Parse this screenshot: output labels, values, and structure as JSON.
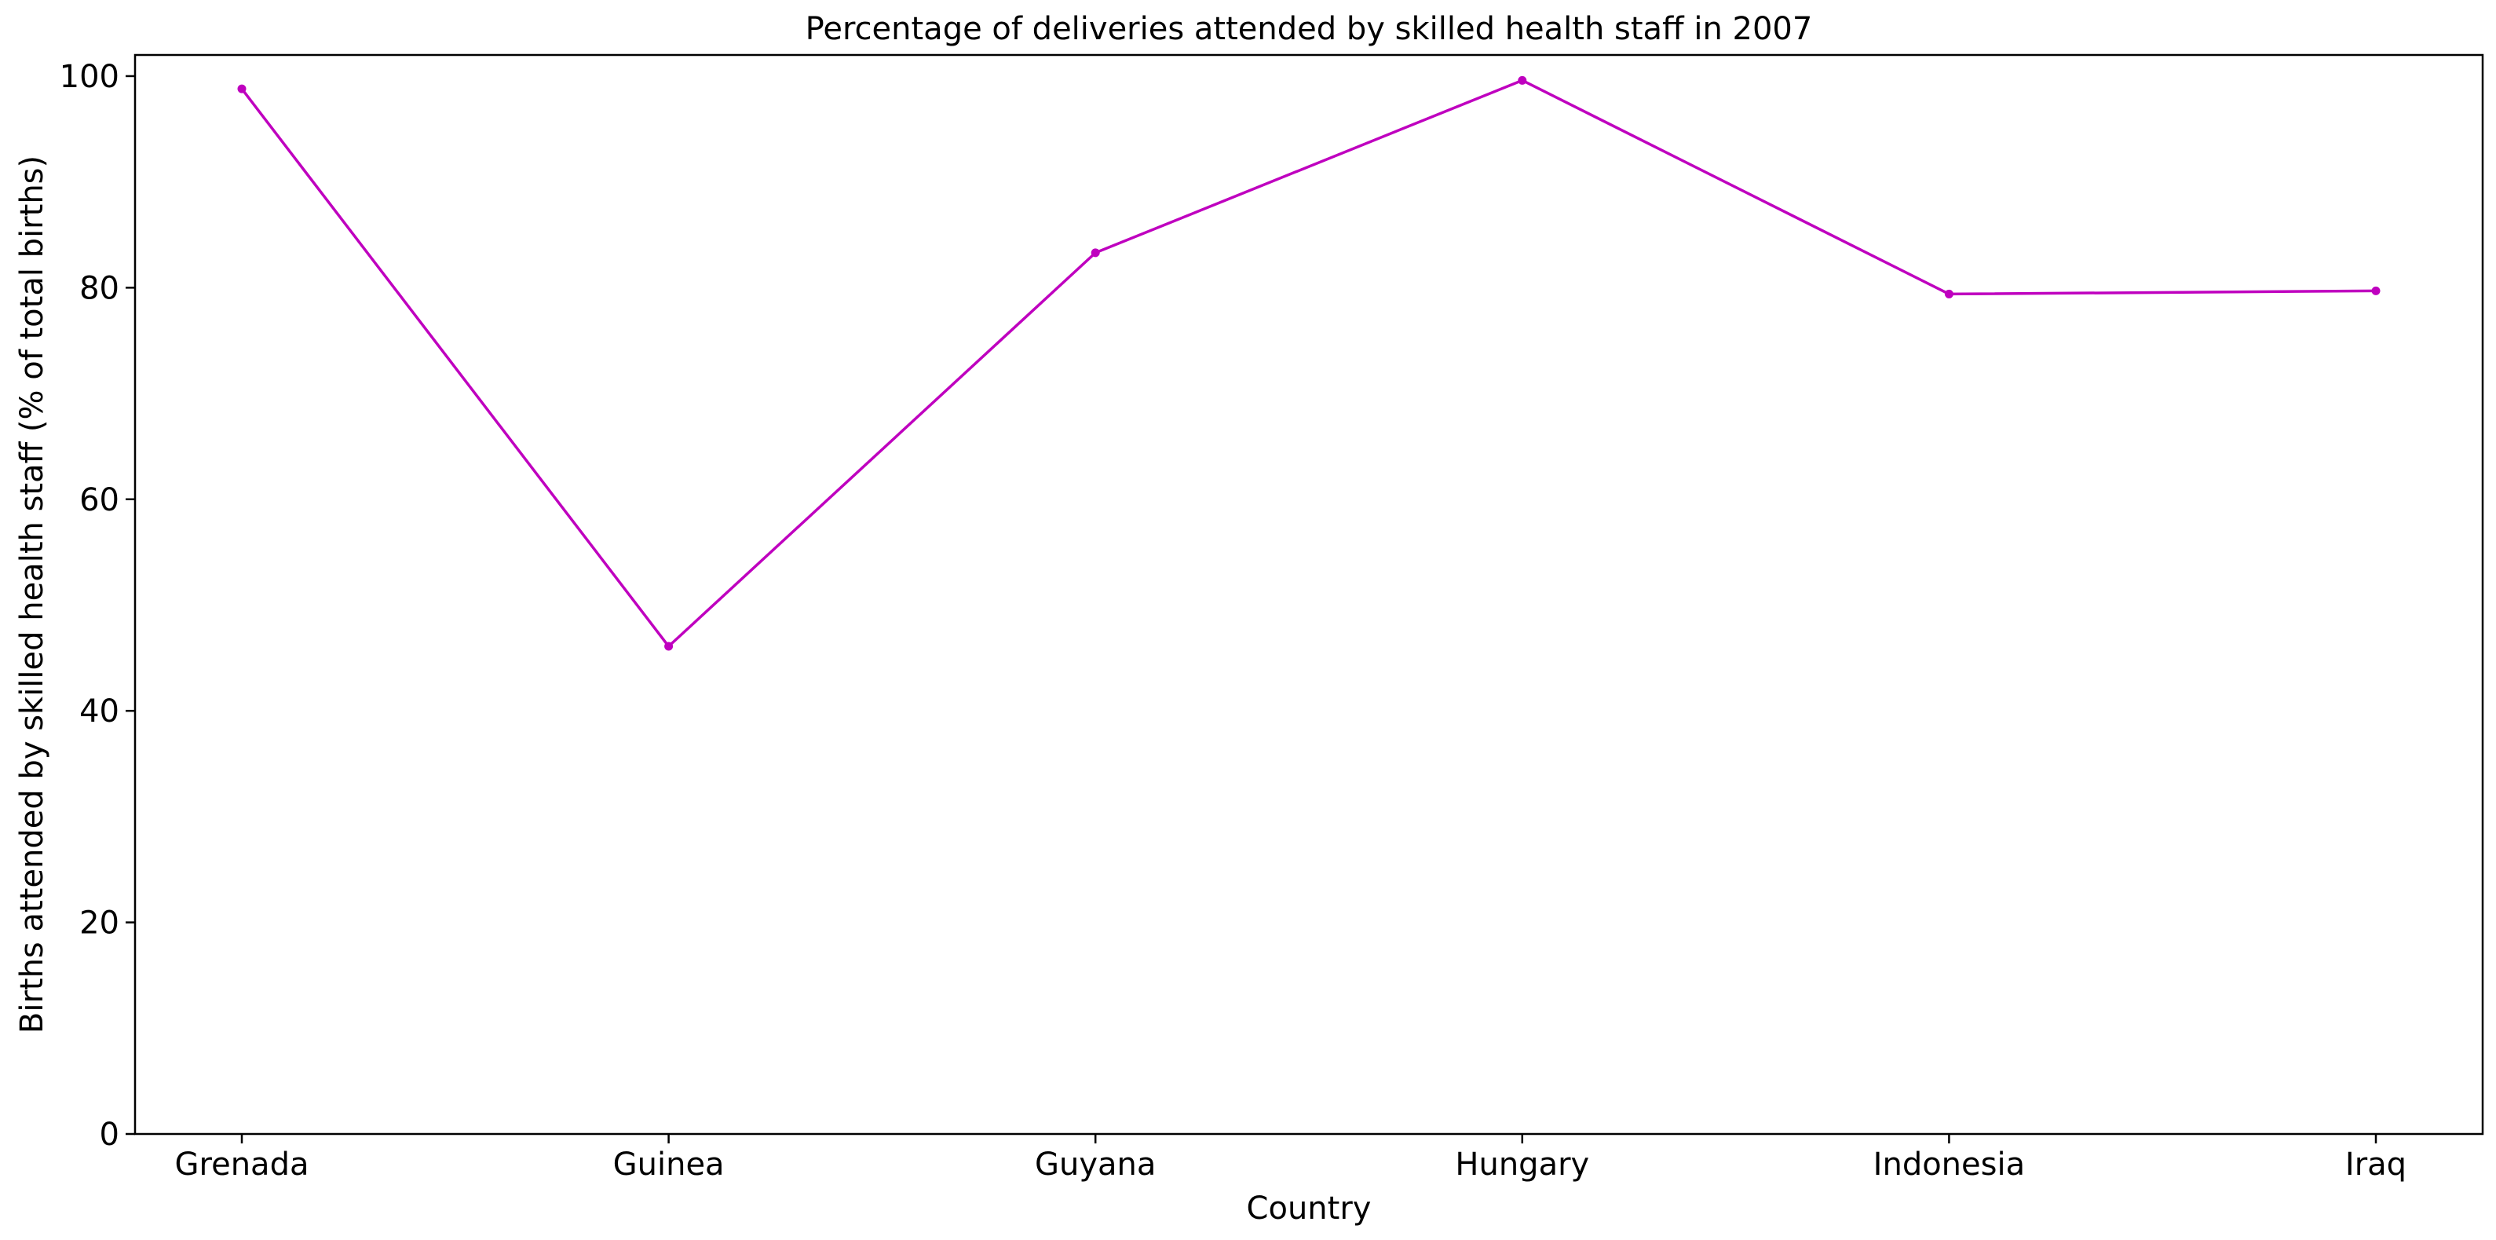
{
  "chart_data": {
    "type": "line",
    "title": "Percentage of deliveries attended by skilled health staff in 2007",
    "xlabel": "Country",
    "ylabel": "Births attended by skilled health staff (% of total births)",
    "categories": [
      "Grenada",
      "Guinea",
      "Guyana",
      "Hungary",
      "Indonesia",
      "Iraq"
    ],
    "series": [
      {
        "values": [
          98.8,
          46.1,
          83.3,
          99.6,
          79.4,
          79.7
        ],
        "color": "#bf00bf"
      }
    ],
    "ylim": [
      0,
      102
    ],
    "yticks": [
      0,
      20,
      40,
      60,
      80,
      100
    ],
    "grid": false,
    "legend": "none"
  }
}
